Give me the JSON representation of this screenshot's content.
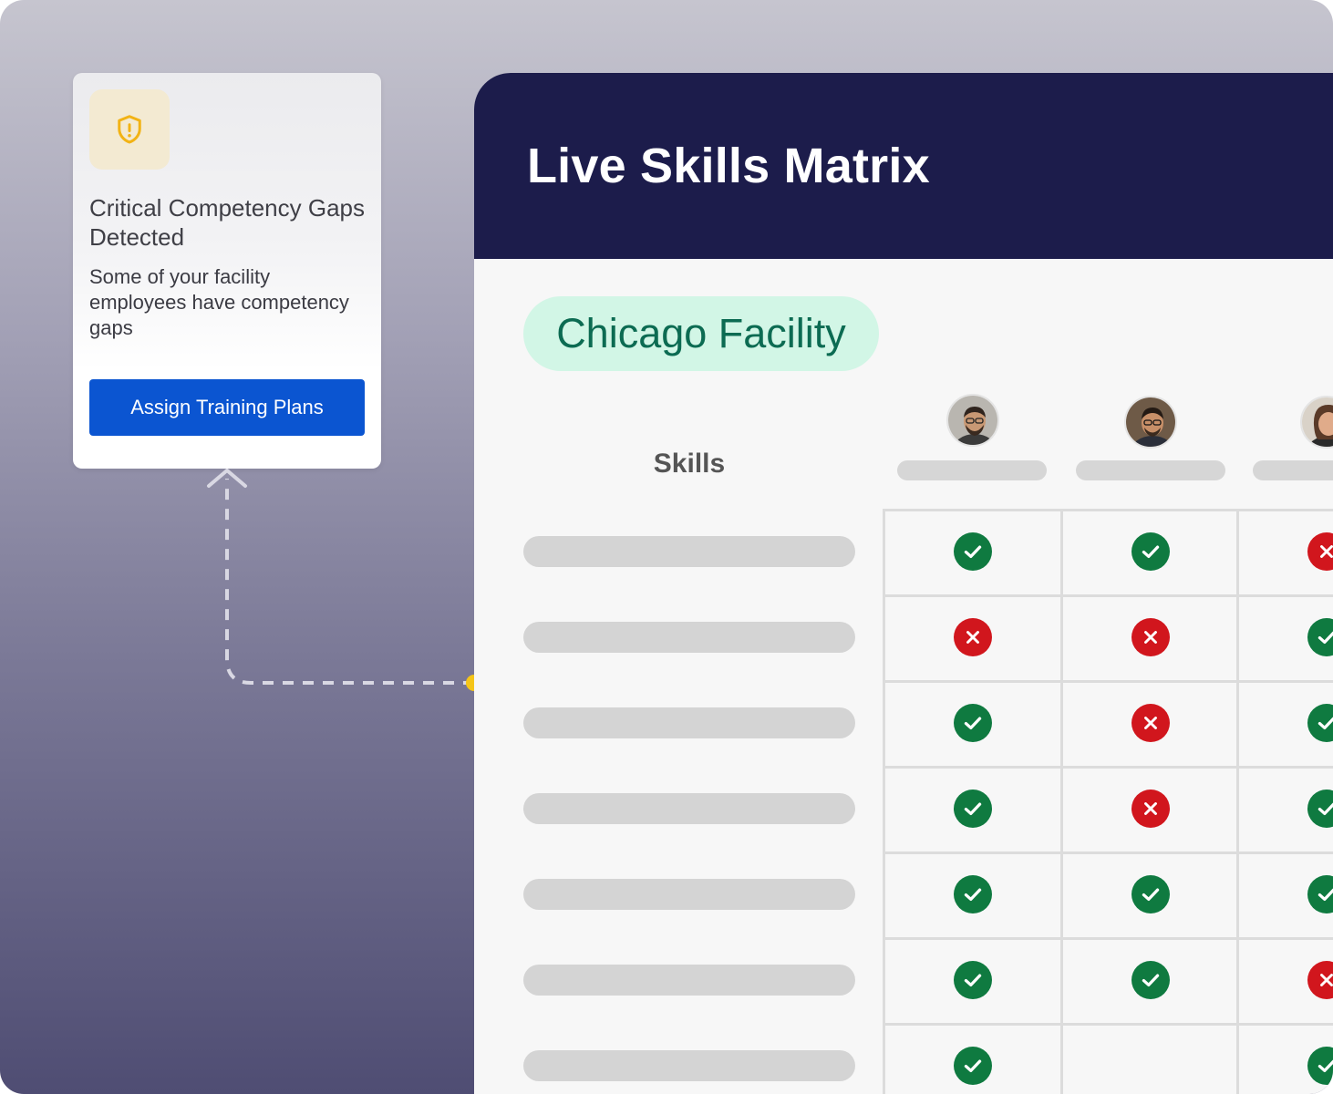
{
  "alert": {
    "icon": "shield-alert-icon",
    "title": "Critical Competency Gaps Detected",
    "body": "Some of your facility employees have competency gaps",
    "button_label": "Assign Training Plans"
  },
  "matrix": {
    "title": "Live Skills Matrix",
    "facility": "Chicago Facility",
    "skills_header": "Skills",
    "employees": [
      {
        "avatar": "avatar-1"
      },
      {
        "avatar": "avatar-2"
      },
      {
        "avatar": "avatar-3"
      }
    ],
    "rows": [
      [
        "check",
        "check",
        "cross"
      ],
      [
        "cross",
        "cross",
        "check"
      ],
      [
        "check",
        "cross",
        "check"
      ],
      [
        "check",
        "cross",
        "check"
      ],
      [
        "check",
        "check",
        "check"
      ],
      [
        "check",
        "check",
        "cross"
      ],
      [
        "check",
        "",
        "check"
      ]
    ]
  },
  "colors": {
    "header_bg": "#1c1c4b",
    "accent_button": "#0b55d1",
    "check": "#0f7a40",
    "cross": "#d1161d",
    "pill_bg": "#d2f6e6",
    "pill_text": "#0c6b52",
    "connector_dot": "#f5c518"
  }
}
